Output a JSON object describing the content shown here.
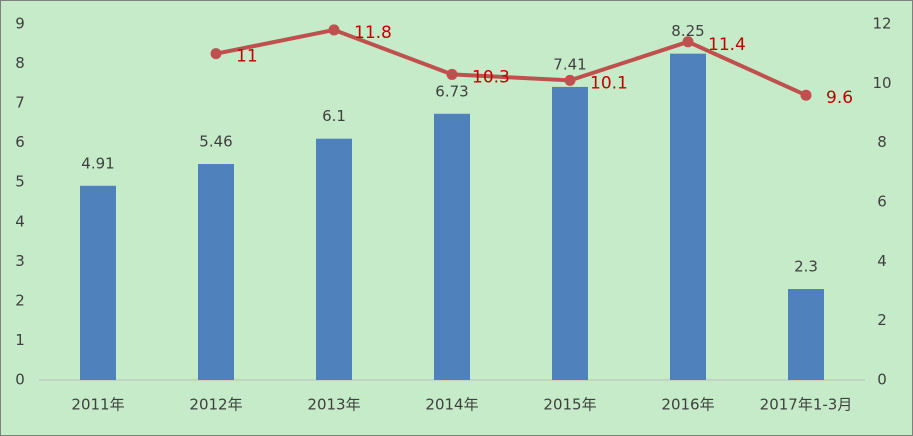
{
  "chart_data": {
    "type": "bar",
    "categories": [
      "2011年",
      "2012年",
      "2013年",
      "2014年",
      "2015年",
      "2016年",
      "2017年1-3月"
    ],
    "series": [
      {
        "type": "bar",
        "color": "#4f81bd",
        "values": [
          4.91,
          5.46,
          6.1,
          6.73,
          7.41,
          8.25,
          2.3
        ]
      },
      {
        "type": "line",
        "axis": "y2",
        "color": "#c0504d",
        "label_color": "#c00000",
        "values": [
          null,
          11,
          11.8,
          10.3,
          10.1,
          11.4,
          9.6
        ]
      }
    ],
    "ylim": [
      0,
      9
    ],
    "yticks": [
      0,
      1,
      2,
      3,
      4,
      5,
      6,
      7,
      8,
      9
    ],
    "y2lim": [
      0,
      12
    ],
    "y2ticks": [
      0,
      2,
      4,
      6,
      8,
      10,
      12
    ],
    "grid": false,
    "background": "#c6ebc9"
  }
}
